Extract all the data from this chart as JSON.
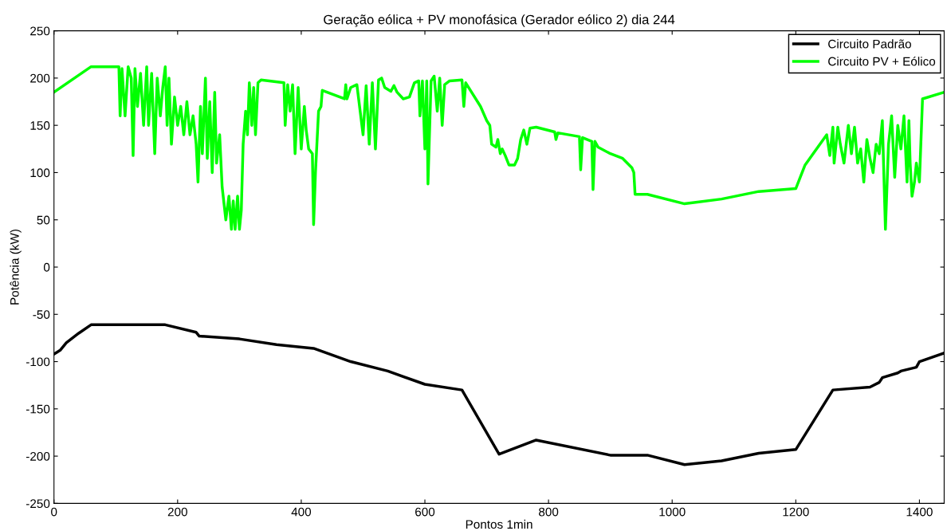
{
  "chart_data": {
    "type": "line",
    "title": "Geração eólica + PV monofásica (Gerador eólico 2) dia 244",
    "xlabel": "Pontos 1min",
    "ylabel": "Potência (kW)",
    "xlim": [
      0,
      1440
    ],
    "xticks": [
      0,
      200,
      400,
      600,
      800,
      1000,
      1200,
      1400
    ],
    "ylim": [
      -250,
      250
    ],
    "yticks": [
      -250,
      -200,
      -150,
      -100,
      -50,
      0,
      50,
      100,
      150,
      200,
      250
    ],
    "grid": false,
    "legend": "top right",
    "series": [
      {
        "name": "Circuito Padrão",
        "color": "#000000",
        "x": [
          0,
          5,
          10,
          20,
          40,
          60,
          180,
          230,
          235,
          300,
          360,
          420,
          480,
          540,
          600,
          660,
          720,
          780,
          900,
          960,
          1020,
          1080,
          1140,
          1200,
          1260,
          1320,
          1335,
          1340,
          1365,
          1370,
          1395,
          1400,
          1440
        ],
        "values": [
          -92,
          -90,
          -88,
          -80,
          -70,
          -61,
          -61,
          -69,
          -73,
          -76,
          -82,
          -86,
          -100,
          -110,
          -124,
          -130,
          -198,
          -183,
          -199,
          -199,
          -209,
          -205,
          -197,
          -193,
          -130,
          -127,
          -122,
          -117,
          -112,
          -110,
          -106,
          -100,
          -91
        ]
      },
      {
        "name": "Circuito PV + Eólico",
        "color": "#00ff00",
        "x": [
          0,
          60,
          105,
          107,
          110,
          115,
          120,
          125,
          128,
          131,
          135,
          140,
          145,
          150,
          153,
          158,
          163,
          167,
          172,
          176,
          180,
          183,
          186,
          190,
          195,
          200,
          205,
          210,
          215,
          220,
          225,
          230,
          233,
          237,
          240,
          245,
          248,
          252,
          256,
          260,
          263,
          268,
          272,
          278,
          283,
          287,
          290,
          293,
          297,
          300,
          303,
          306,
          310,
          313,
          316,
          320,
          323,
          326,
          330,
          335,
          372,
          374,
          378,
          382,
          386,
          390,
          395,
          400,
          405,
          408,
          412,
          418,
          420,
          423,
          428,
          432,
          434,
          470,
          472,
          474,
          480,
          490,
          500,
          505,
          510,
          515,
          520,
          525,
          530,
          535,
          545,
          550,
          555,
          565,
          575,
          583,
          590,
          592,
          596,
          600,
          603,
          605,
          610,
          615,
          620,
          624,
          628,
          632,
          640,
          660,
          663,
          666,
          690,
          700,
          705,
          708,
          715,
          718,
          722,
          725,
          730,
          736,
          745,
          750,
          755,
          760,
          765,
          770,
          780,
          810,
          812,
          815,
          850,
          852,
          855,
          870,
          872,
          875,
          880,
          900,
          920,
          935,
          938,
          940,
          960,
          1020,
          1080,
          1140,
          1200,
          1215,
          1250,
          1255,
          1260,
          1262,
          1268,
          1272,
          1278,
          1285,
          1290,
          1295,
          1300,
          1305,
          1310,
          1315,
          1320,
          1325,
          1330,
          1335,
          1340,
          1345,
          1350,
          1355,
          1360,
          1365,
          1370,
          1375,
          1380,
          1383,
          1385,
          1388,
          1392,
          1395,
          1400,
          1405,
          1440
        ],
        "values": [
          185,
          212,
          212,
          160,
          210,
          160,
          212,
          200,
          118,
          210,
          170,
          205,
          150,
          212,
          150,
          205,
          120,
          200,
          160,
          190,
          212,
          150,
          200,
          130,
          180,
          150,
          170,
          140,
          175,
          140,
          160,
          130,
          90,
          170,
          120,
          200,
          115,
          175,
          100,
          185,
          110,
          140,
          85,
          50,
          75,
          40,
          70,
          40,
          75,
          40,
          60,
          130,
          165,
          140,
          195,
          150,
          190,
          140,
          195,
          198,
          195,
          150,
          193,
          165,
          193,
          120,
          190,
          125,
          170,
          145,
          125,
          120,
          45,
          100,
          165,
          170,
          187,
          178,
          193,
          178,
          190,
          193,
          140,
          192,
          130,
          195,
          125,
          198,
          200,
          190,
          186,
          192,
          185,
          178,
          180,
          195,
          197,
          160,
          197,
          125,
          197,
          88,
          197,
          202,
          165,
          200,
          150,
          193,
          197,
          198,
          170,
          195,
          170,
          155,
          150,
          130,
          127,
          135,
          120,
          125,
          118,
          108,
          108,
          115,
          135,
          145,
          130,
          147,
          148,
          143,
          135,
          142,
          138,
          103,
          137,
          133,
          82,
          133,
          127,
          120,
          115,
          105,
          100,
          77,
          77,
          67,
          72,
          80,
          83,
          108,
          140,
          118,
          148,
          110,
          148,
          130,
          110,
          150,
          120,
          148,
          110,
          125,
          90,
          135,
          115,
          100,
          130,
          120,
          155,
          40,
          130,
          160,
          95,
          150,
          125,
          160,
          90,
          155,
          110,
          75,
          90,
          110,
          90,
          178,
          185
        ]
      }
    ]
  }
}
